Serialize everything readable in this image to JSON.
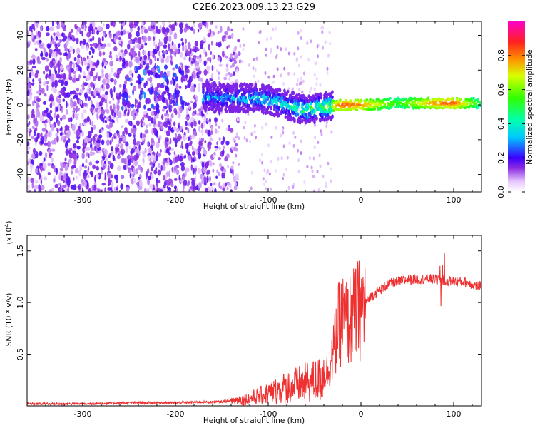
{
  "title": "C2E6.2023.009.13.23.G29",
  "chart_data": [
    {
      "type": "heatmap",
      "name": "spectrogram",
      "xlabel": "Height of straight line (km)",
      "ylabel": "Frequency (Hz)",
      "xlim": [
        -360,
        130
      ],
      "ylim": [
        -50,
        48
      ],
      "xticks": [
        -300,
        -200,
        -100,
        0,
        100
      ],
      "xtick_labels": [
        "-300",
        "-200",
        "-100",
        "0",
        "100"
      ],
      "yticks": [
        40,
        20,
        0,
        -20,
        -40
      ],
      "ytick_labels": [
        "40",
        "20",
        "0",
        "-20",
        "-40"
      ],
      "colorbar": {
        "label": "Normalized spectral amplitude",
        "range": [
          0,
          1
        ],
        "ticks": [
          0.0,
          0.2,
          0.4,
          0.6,
          0.8
        ],
        "tick_labels": [
          "0.0",
          "0.2",
          "0.4",
          "0.6",
          "0.8"
        ]
      },
      "ridge": [
        {
          "x": -150,
          "y": 4,
          "amp": 0.35
        },
        {
          "x": -120,
          "y": 4,
          "amp": 0.4
        },
        {
          "x": -100,
          "y": 3,
          "amp": 0.42
        },
        {
          "x": -80,
          "y": 0,
          "amp": 0.45
        },
        {
          "x": -60,
          "y": -3,
          "amp": 0.55
        },
        {
          "x": -40,
          "y": -1,
          "amp": 0.6
        },
        {
          "x": -20,
          "y": 0,
          "amp": 0.85
        },
        {
          "x": 0,
          "y": 0,
          "amp": 0.8
        },
        {
          "x": 40,
          "y": 1,
          "amp": 0.55
        },
        {
          "x": 80,
          "y": 1,
          "amp": 0.8
        },
        {
          "x": 100,
          "y": 1,
          "amp": 0.85
        },
        {
          "x": 130,
          "y": 1,
          "amp": 0.5
        }
      ]
    },
    {
      "type": "line",
      "name": "snr",
      "xlabel": "Height of straight line (km)",
      "ylabel": "SNR (10 * v/v)",
      "scale_label_base": "(x10",
      "scale_label_exp": "4",
      "scale_label_end": ")",
      "xlim": [
        -360,
        130
      ],
      "ylim": [
        0,
        1.65
      ],
      "xticks": [
        -300,
        -200,
        -100,
        0,
        100
      ],
      "xtick_labels": [
        "-300",
        "-200",
        "-100",
        "0",
        "100"
      ],
      "yticks": [
        1.5,
        1.0,
        0.5
      ],
      "ytick_labels": [
        "1.5",
        "1.0",
        "0.5"
      ],
      "series": [
        {
          "name": "SNR",
          "color": "#ee3030",
          "x": [
            -360,
            -300,
            -250,
            -200,
            -150,
            -120,
            -100,
            -80,
            -60,
            -45,
            -35,
            -30,
            -25,
            -20,
            -15,
            -10,
            0,
            10,
            20,
            30,
            50,
            70,
            85,
            95,
            110,
            120,
            130
          ],
          "values": [
            0.02,
            0.02,
            0.03,
            0.03,
            0.04,
            0.07,
            0.12,
            0.18,
            0.22,
            0.25,
            0.35,
            0.5,
            0.75,
            0.85,
            0.8,
            0.85,
            0.95,
            1.05,
            1.12,
            1.18,
            1.22,
            1.23,
            1.22,
            1.21,
            1.2,
            1.18,
            1.15
          ]
        }
      ]
    }
  ]
}
